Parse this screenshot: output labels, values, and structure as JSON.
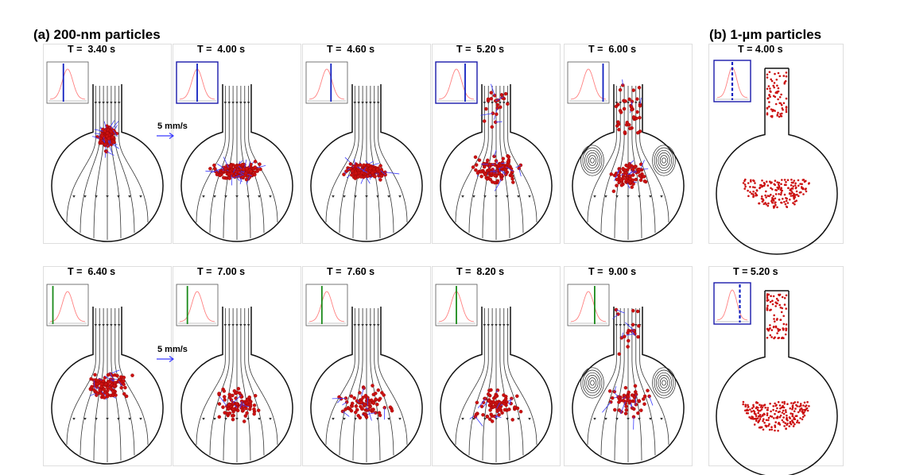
{
  "figure": {
    "section_a_title": "(a) 200-nm particles",
    "section_b_title": "(b) 1-µm particles",
    "velocity_scale_label": "5 mm/s",
    "colors": {
      "streamline": "#333333",
      "particle": "#cc1111",
      "velocity_arrow": "#3b3bff",
      "pulse_curve": "#ff8080",
      "inset_border": "#1a1aaa",
      "cursor_blue": "#1020c0",
      "cursor_green": "#1a8a1a"
    }
  },
  "row1": [
    {
      "time": "T =  3.40 s",
      "pulse_phase": 0.38,
      "cursor_color": "blue",
      "inset_highlight": false,
      "state": "injection-jet",
      "particle_count": 160
    },
    {
      "time": "T =  4.00 s",
      "pulse_phase": 0.5,
      "cursor_color": "blue",
      "inset_highlight": true,
      "state": "spreading-band",
      "particle_count": 200
    },
    {
      "time": "T =  4.60 s",
      "pulse_phase": 0.62,
      "cursor_color": "blue",
      "inset_highlight": false,
      "state": "spreading-band",
      "particle_count": 150
    },
    {
      "time": "T =  5.20 s",
      "pulse_phase": 0.75,
      "cursor_color": "blue",
      "inset_highlight": true,
      "state": "dispersing",
      "particle_count": 140
    },
    {
      "time": "T =  6.00 s",
      "pulse_phase": 0.92,
      "cursor_color": "blue",
      "inset_highlight": false,
      "state": "vortices",
      "particle_count": 120
    }
  ],
  "row2": [
    {
      "time": "T =  6.40 s",
      "pulse_phase": 0.08,
      "cursor_color": "green",
      "inset_highlight": false,
      "state": "scattered-dense",
      "particle_count": 110
    },
    {
      "time": "T =  7.00 s",
      "pulse_phase": 0.22,
      "cursor_color": "green",
      "inset_highlight": false,
      "state": "scattered",
      "particle_count": 90
    },
    {
      "time": "T =  7.60 s",
      "pulse_phase": 0.36,
      "cursor_color": "green",
      "inset_highlight": false,
      "state": "scattered",
      "particle_count": 85
    },
    {
      "time": "T =  8.20 s",
      "pulse_phase": 0.5,
      "cursor_color": "green",
      "inset_highlight": false,
      "state": "scattered",
      "particle_count": 80
    },
    {
      "time": "T =  9.00 s",
      "pulse_phase": 0.68,
      "cursor_color": "green",
      "inset_highlight": false,
      "state": "vortices",
      "particle_count": 70
    }
  ],
  "micron": [
    {
      "time": "T = 4.00 s",
      "pulse_phase": 0.5,
      "cursor_color": "blue-dashed",
      "inset_highlight": true,
      "particle_count": 260
    },
    {
      "time": "T = 5.20 s",
      "pulse_phase": 0.75,
      "cursor_color": "blue-dashed",
      "inset_highlight": true,
      "particle_count": 300
    }
  ]
}
